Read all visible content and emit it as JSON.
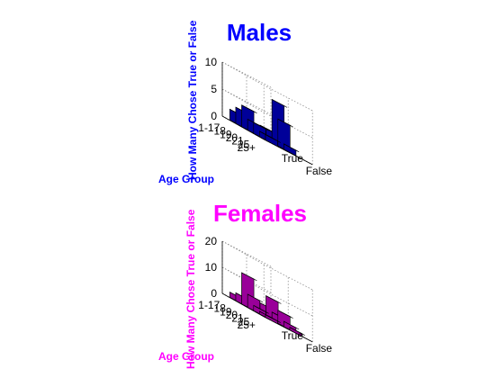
{
  "colors": {
    "males": "#0000ff",
    "females": "#ff00ff",
    "grid": "#808080"
  },
  "chart_data": [
    {
      "type": "bar",
      "title": "Males",
      "xlabel": "Age Group",
      "ylabel": "How Many Chose True or False",
      "categories": [
        "1-17",
        "18",
        "19",
        "20",
        "21",
        "25",
        "25+"
      ],
      "category_labels": [
        "1-17",
        "18",
        "19",
        "20",
        "21",
        "25",
        "25+"
      ],
      "answer_labels": [
        "True",
        "False"
      ],
      "z_ticks": [
        "0",
        "5",
        "10"
      ],
      "zlim": [
        0,
        10
      ],
      "series": [
        {
          "name": "True",
          "values": [
            2,
            3,
            4,
            2,
            2,
            1,
            1
          ]
        },
        {
          "name": "False",
          "values": [
            1,
            2,
            2,
            8,
            5,
            1,
            0
          ]
        }
      ]
    },
    {
      "type": "bar",
      "title": "Females",
      "xlabel": "Age Group",
      "ylabel": "How Many Chose True or False",
      "categories": [
        "1-17",
        "18",
        "19",
        "20",
        "21",
        "25",
        "25+"
      ],
      "category_labels": [
        "1-17",
        "18",
        "19",
        "20",
        "21",
        "25",
        "25+"
      ],
      "answer_labels": [
        "True",
        "False"
      ],
      "z_ticks": [
        "0",
        "10",
        "20"
      ],
      "zlim": [
        0,
        20
      ],
      "series": [
        {
          "name": "True",
          "values": [
            2,
            3,
            12,
            5,
            2,
            1,
            1
          ]
        },
        {
          "name": "False",
          "values": [
            1,
            4,
            8,
            3,
            5,
            2,
            1
          ]
        }
      ]
    }
  ]
}
